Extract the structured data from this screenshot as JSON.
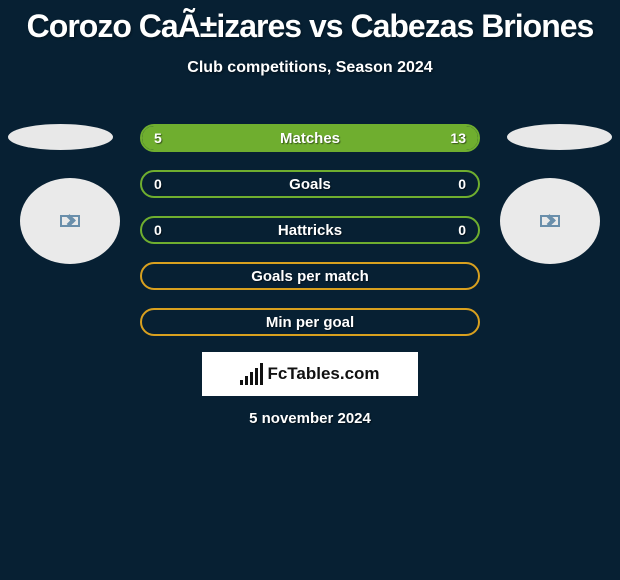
{
  "title": "Corozo CaÃ±izares vs Cabezas Briones",
  "subtitle": "Club competitions, Season 2024",
  "date": "5 november 2024",
  "logo_text": "FcTables.com",
  "colors": {
    "background": "#072033",
    "bar_border_green": "#6fae2f",
    "bar_fill_green": "#6fae2f",
    "bar_border_orange": "#d8a01f",
    "bar_fill_orange": "#d8a01f",
    "text": "#ffffff"
  },
  "stats": [
    {
      "label": "Matches",
      "left_value": "5",
      "right_value": "13",
      "left_pct": 27.8,
      "right_pct": 72.2,
      "border_color": "#6fae2f",
      "left_fill": "#6fae2f",
      "right_fill": "#6fae2f"
    },
    {
      "label": "Goals",
      "left_value": "0",
      "right_value": "0",
      "left_pct": 0,
      "right_pct": 0,
      "border_color": "#6fae2f",
      "left_fill": "#6fae2f",
      "right_fill": "#6fae2f"
    },
    {
      "label": "Hattricks",
      "left_value": "0",
      "right_value": "0",
      "left_pct": 0,
      "right_pct": 0,
      "border_color": "#6fae2f",
      "left_fill": "#6fae2f",
      "right_fill": "#6fae2f"
    },
    {
      "label": "Goals per match",
      "left_value": "",
      "right_value": "",
      "left_pct": 0,
      "right_pct": 0,
      "border_color": "#d8a01f",
      "left_fill": "#d8a01f",
      "right_fill": "#d8a01f"
    },
    {
      "label": "Min per goal",
      "left_value": "",
      "right_value": "",
      "left_pct": 0,
      "right_pct": 0,
      "border_color": "#d8a01f",
      "left_fill": "#d8a01f",
      "right_fill": "#d8a01f"
    }
  ]
}
